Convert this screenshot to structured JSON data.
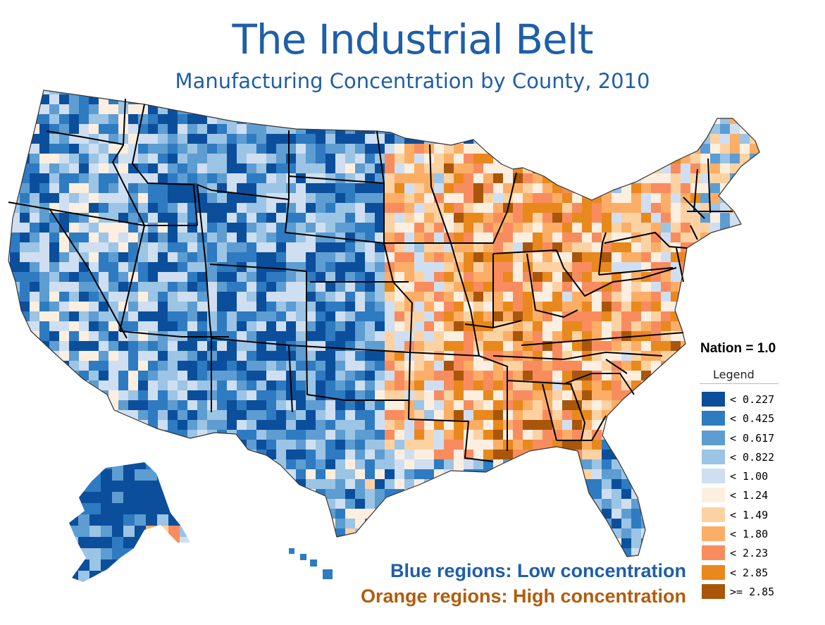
{
  "title": "The Industrial Belt",
  "subtitle": "Manufacturing Concentration by County, 2010",
  "nation_label": "Nation = 1.0",
  "legend": {
    "title": "Legend",
    "items": [
      {
        "label": "< 0.227",
        "color": "#0b4f9c"
      },
      {
        "label": "< 0.425",
        "color": "#2e7bc1"
      },
      {
        "label": "< 0.617",
        "color": "#5d9dd1"
      },
      {
        "label": "< 0.822",
        "color": "#9cc4e4"
      },
      {
        "label": "< 1.00",
        "color": "#cfdff1"
      },
      {
        "label": "< 1.24",
        "color": "#fdefe0"
      },
      {
        "label": "< 1.49",
        "color": "#fdd2a3"
      },
      {
        "label": "< 1.80",
        "color": "#fcae66"
      },
      {
        "label": "< 2.23",
        "color": "#f98c5e"
      },
      {
        "label": "< 2.85",
        "color": "#e9881c"
      },
      {
        "label": ">= 2.85",
        "color": "#a9560b"
      }
    ]
  },
  "notes": {
    "blue": "Blue regions: Low concentration",
    "orange": "Orange regions: High concentration"
  },
  "colors": {
    "title": "#1f5ea8",
    "orange_note": "#b15c0c",
    "state_borders": "#000000",
    "ocean": "#ffffff"
  }
}
